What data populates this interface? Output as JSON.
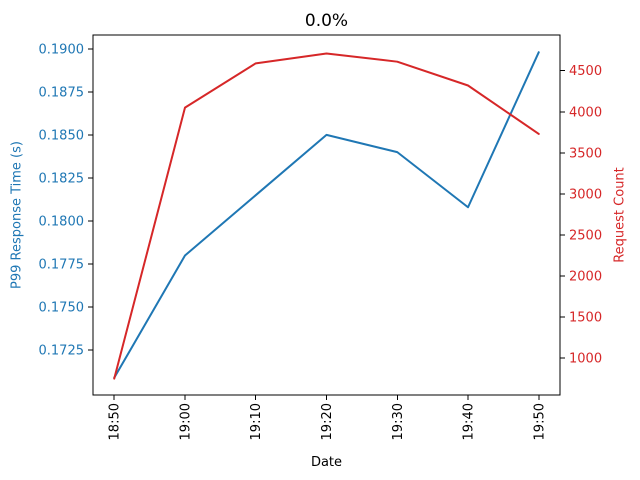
{
  "chart_data": {
    "type": "line",
    "title": "0.0%",
    "xlabel": "Date",
    "categories": [
      "18:50",
      "19:00",
      "19:10",
      "19:20",
      "19:30",
      "19:40",
      "19:50"
    ],
    "series": [
      {
        "name": "P99 Response Time (s)",
        "axis": "left",
        "color": "#1f77b4",
        "values": [
          0.1709,
          0.178,
          0.1815,
          0.185,
          0.184,
          0.1808,
          0.1898
        ]
      },
      {
        "name": "Request Count",
        "axis": "right",
        "color": "#d62728",
        "values": [
          750,
          4050,
          4590,
          4710,
          4610,
          4320,
          3730
        ]
      }
    ],
    "left_axis": {
      "label": "P99 Response Time (s)",
      "color": "#1f77b4",
      "ylim": [
        0.1699,
        0.1908
      ],
      "ticks": [
        0.1725,
        0.175,
        0.1775,
        0.18,
        0.1825,
        0.185,
        0.1875,
        0.19
      ],
      "decimals": 4
    },
    "right_axis": {
      "label": "Request Count",
      "color": "#d62728",
      "ylim": [
        550,
        4935
      ],
      "ticks": [
        1000,
        1500,
        2000,
        2500,
        3000,
        3500,
        4000,
        4500
      ],
      "decimals": 0
    },
    "x_margin_frac": 0.05,
    "grid": false,
    "legend": "none",
    "line_width": 2,
    "background": "#ffffff",
    "spine_color": "#000000",
    "tick_color": "#000000",
    "title_color": "#000000"
  }
}
